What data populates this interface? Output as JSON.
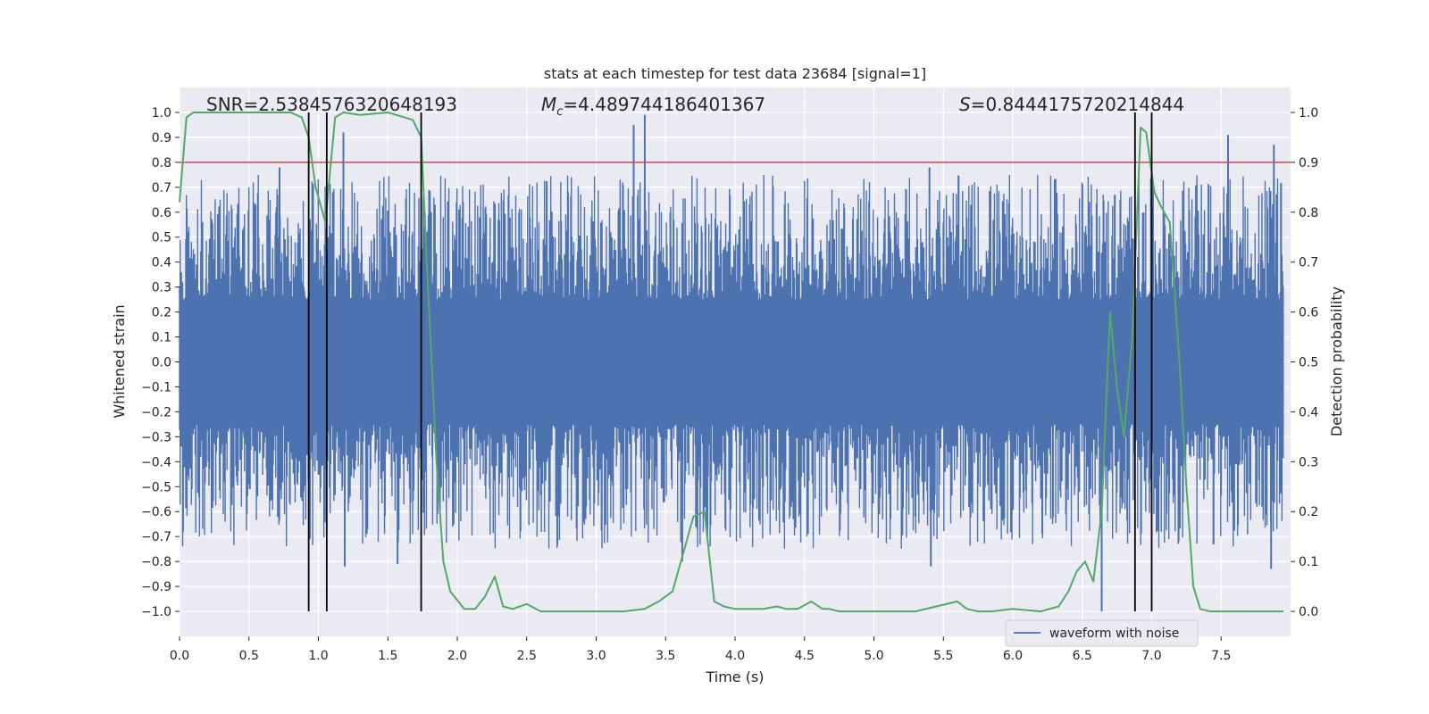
{
  "chart_data": {
    "type": "line",
    "title": "stats at each timestep for test data 23684 [signal=1]",
    "xlabel": "Time (s)",
    "ylabel_left": "Whitened strain",
    "ylabel_right": "Detection probability",
    "xlim": [
      0.0,
      8.0
    ],
    "ylim_left": [
      -1.1,
      1.1
    ],
    "ylim_right": [
      -0.05,
      1.05
    ],
    "x_ticks": [
      "0.0",
      "0.5",
      "1.0",
      "1.5",
      "2.0",
      "2.5",
      "3.0",
      "3.5",
      "4.0",
      "4.5",
      "5.0",
      "5.5",
      "6.0",
      "6.5",
      "7.0",
      "7.5"
    ],
    "y_ticks_left": [
      "1.0",
      "0.9",
      "0.8",
      "0.7",
      "0.6",
      "0.5",
      "0.4",
      "0.3",
      "0.2",
      "0.1",
      "0.0",
      "−0.1",
      "−0.2",
      "−0.3",
      "−0.4",
      "−0.5",
      "−0.6",
      "−0.7",
      "−0.8",
      "−0.9",
      "−1.0"
    ],
    "y_ticks_right": [
      "1.0",
      "0.9",
      "0.8",
      "0.7",
      "0.6",
      "0.5",
      "0.4",
      "0.3",
      "0.2",
      "0.1",
      "0.0"
    ],
    "annotations": {
      "snr": "SNR=2.5384576320648193",
      "mc_symbol": "M",
      "mc_sub": "c",
      "mc_value": "=4.489744186401367",
      "s_symbol": "S",
      "s_value": "=0.8444175720214844"
    },
    "threshold": {
      "value": 0.9,
      "axis": "right",
      "color": "#c44e52"
    },
    "vertical_markers": [
      0.93,
      1.06,
      1.74,
      6.88,
      7.0
    ],
    "series": [
      {
        "name": "waveform with noise",
        "axis": "left",
        "color": "#4c72b0",
        "style": "dense noise band",
        "core_amplitude": 0.25,
        "envelope_max": 0.75,
        "peaks": [
          {
            "x": 0.72,
            "y": 0.78
          },
          {
            "x": 1.18,
            "y": 0.92
          },
          {
            "x": 3.27,
            "y": 0.95
          },
          {
            "x": 3.35,
            "y": 0.99
          },
          {
            "x": 5.4,
            "y": 0.78
          },
          {
            "x": 7.55,
            "y": 0.91
          },
          {
            "x": 7.88,
            "y": 0.87
          },
          {
            "x": 1.19,
            "y": -0.82
          },
          {
            "x": 1.57,
            "y": -0.81
          },
          {
            "x": 3.62,
            "y": -0.8
          },
          {
            "x": 5.41,
            "y": -0.82
          },
          {
            "x": 6.64,
            "y": -1.0
          },
          {
            "x": 7.86,
            "y": -0.83
          }
        ]
      },
      {
        "name": "detection probability",
        "axis": "right",
        "color": "#55a868",
        "x": [
          0.0,
          0.05,
          0.1,
          0.2,
          0.4,
          0.6,
          0.8,
          0.88,
          0.93,
          0.98,
          1.05,
          1.12,
          1.18,
          1.3,
          1.5,
          1.68,
          1.74,
          1.78,
          1.85,
          1.9,
          1.95,
          2.05,
          2.13,
          2.2,
          2.27,
          2.33,
          2.4,
          2.5,
          2.6,
          2.8,
          3.0,
          3.2,
          3.35,
          3.45,
          3.55,
          3.63,
          3.7,
          3.78,
          3.85,
          3.92,
          4.0,
          4.2,
          4.3,
          4.37,
          4.45,
          4.55,
          4.63,
          4.68,
          4.75,
          4.9,
          5.1,
          5.3,
          5.6,
          5.67,
          5.75,
          5.85,
          6.0,
          6.2,
          6.33,
          6.4,
          6.46,
          6.52,
          6.58,
          6.64,
          6.7,
          6.75,
          6.8,
          6.86,
          6.92,
          6.96,
          7.02,
          7.07,
          7.13,
          7.2,
          7.25,
          7.3,
          7.35,
          7.42,
          7.55,
          7.75,
          7.95
        ],
        "values": [
          0.82,
          0.99,
          1.0,
          1.0,
          1.0,
          1.0,
          1.0,
          0.99,
          0.95,
          0.85,
          0.78,
          0.99,
          1.0,
          0.995,
          1.0,
          0.985,
          0.95,
          0.7,
          0.3,
          0.1,
          0.04,
          0.005,
          0.005,
          0.03,
          0.07,
          0.01,
          0.005,
          0.015,
          0.0,
          0.0,
          0.0,
          0.0,
          0.005,
          0.02,
          0.04,
          0.12,
          0.19,
          0.2,
          0.02,
          0.01,
          0.005,
          0.005,
          0.01,
          0.005,
          0.005,
          0.02,
          0.005,
          0.005,
          0.0,
          0.0,
          0.0,
          0.0,
          0.02,
          0.005,
          0.0,
          0.0,
          0.005,
          0.0,
          0.01,
          0.04,
          0.08,
          0.1,
          0.06,
          0.2,
          0.6,
          0.45,
          0.35,
          0.55,
          0.97,
          0.96,
          0.84,
          0.81,
          0.78,
          0.5,
          0.25,
          0.05,
          0.005,
          0.0,
          0.0,
          0.0,
          0.0
        ]
      }
    ],
    "legend": {
      "label": "waveform with noise",
      "position": "lower-right"
    }
  }
}
